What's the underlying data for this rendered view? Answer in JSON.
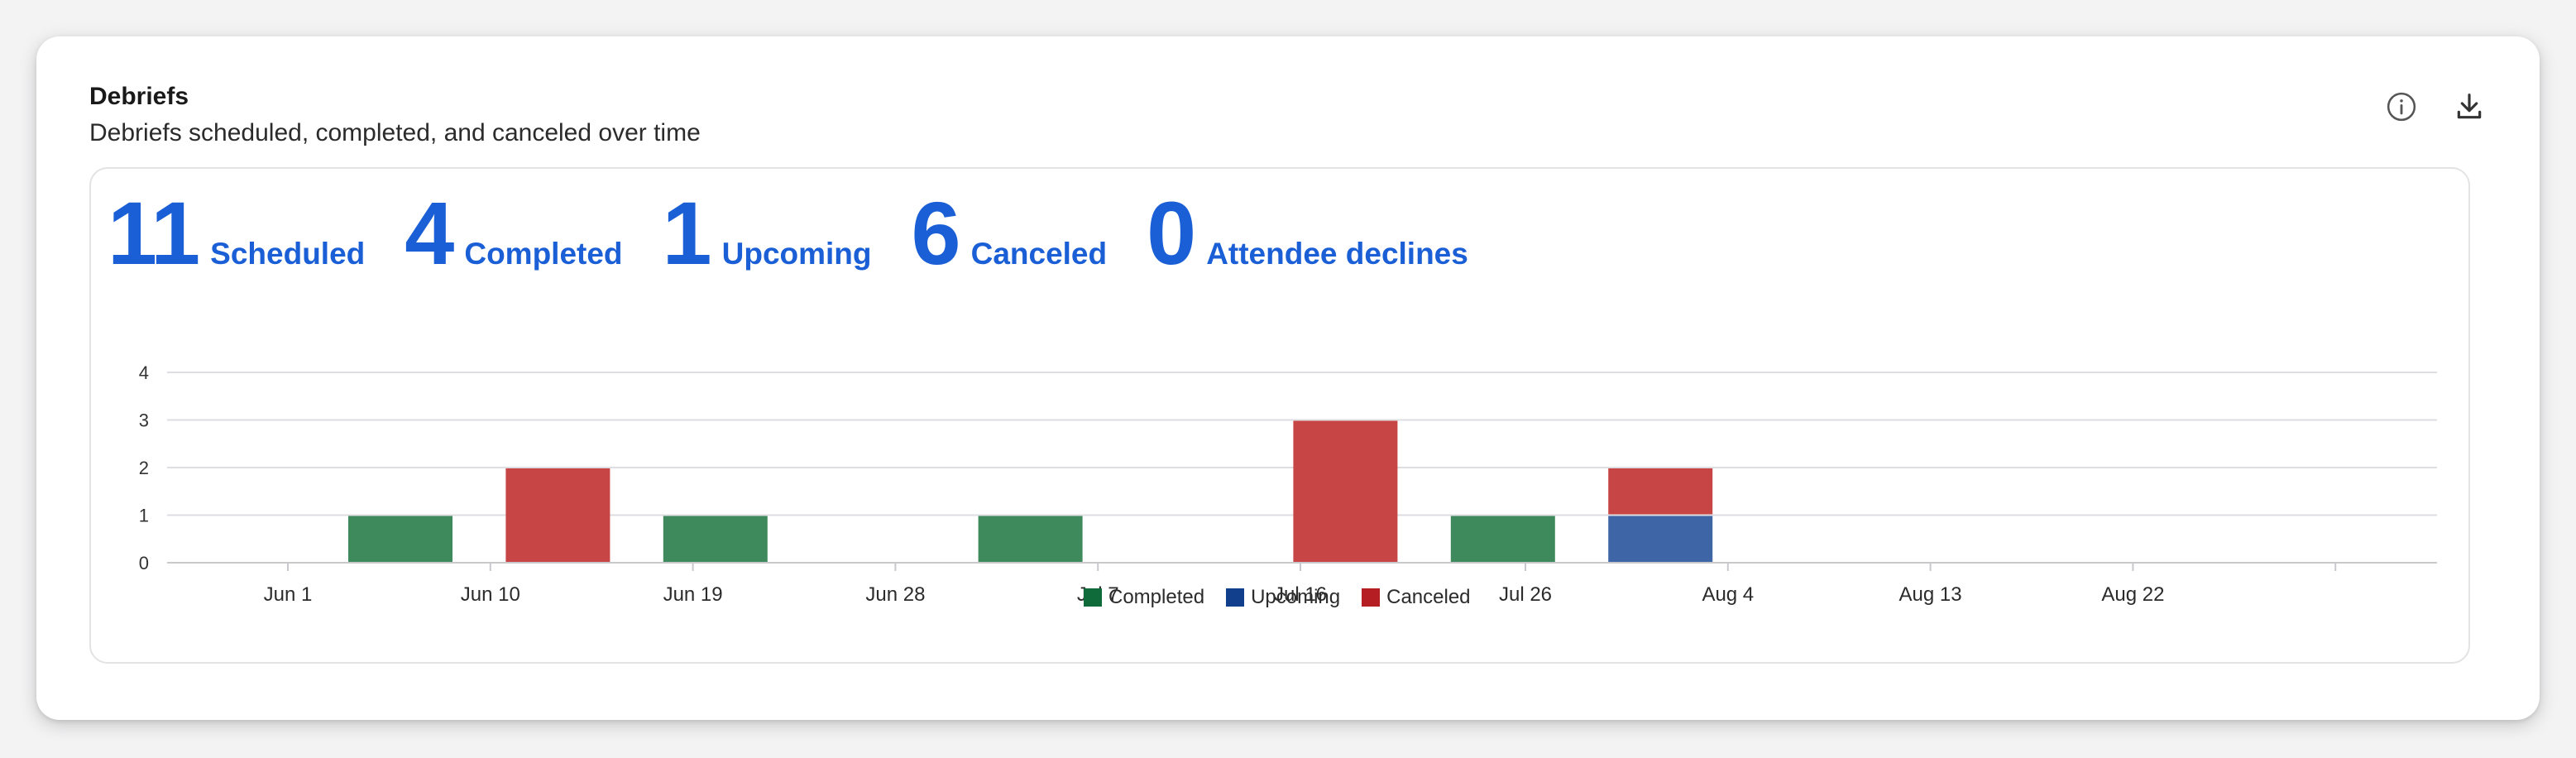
{
  "card": {
    "title": "Debriefs",
    "subtitle": "Debriefs scheduled, completed, and canceled over time"
  },
  "icons": {
    "info": "info-icon",
    "download": "download-icon"
  },
  "stats": [
    {
      "value": "11",
      "label": "Scheduled"
    },
    {
      "value": "4",
      "label": "Completed"
    },
    {
      "value": "1",
      "label": "Upcoming"
    },
    {
      "value": "6",
      "label": "Canceled"
    },
    {
      "value": "0",
      "label": "Attendee declines"
    }
  ],
  "colors": {
    "accent": "#1a5fd6",
    "completed": "#0f6b3a",
    "upcoming": "#123f8c",
    "canceled": "#b51f24",
    "completed_bar": "#3f8a5c",
    "upcoming_bar": "#3e66a6",
    "canceled_bar": "#c74545",
    "grid": "#dedee2"
  },
  "chart_data": {
    "type": "bar",
    "stacked": true,
    "categories": [
      "Jun 1",
      "Jun 10",
      "Jun 19",
      "Jun 28",
      "Jul 7",
      "Jul 16",
      "Jul 26",
      "Aug 4",
      "Aug 13",
      "Aug 22"
    ],
    "bars": [
      {
        "date": "Jun 6",
        "completed": 1,
        "upcoming": 0,
        "canceled": 0
      },
      {
        "date": "Jun 13",
        "completed": 0,
        "upcoming": 0,
        "canceled": 2
      },
      {
        "date": "Jun 20",
        "completed": 1,
        "upcoming": 0,
        "canceled": 0
      },
      {
        "date": "Jul 4",
        "completed": 1,
        "upcoming": 0,
        "canceled": 0
      },
      {
        "date": "Jul 18",
        "completed": 0,
        "upcoming": 0,
        "canceled": 3
      },
      {
        "date": "Jul 25",
        "completed": 1,
        "upcoming": 0,
        "canceled": 0
      },
      {
        "date": "Aug 1",
        "completed": 0,
        "upcoming": 1,
        "canceled": 1
      }
    ],
    "series": [
      {
        "name": "Completed",
        "key": "completed"
      },
      {
        "name": "Upcoming",
        "key": "upcoming"
      },
      {
        "name": "Canceled",
        "key": "canceled"
      }
    ],
    "y_ticks": [
      "0",
      "1",
      "2",
      "3",
      "4"
    ],
    "ylim": [
      0,
      4
    ],
    "grid": true,
    "legend": "bottom-center"
  }
}
